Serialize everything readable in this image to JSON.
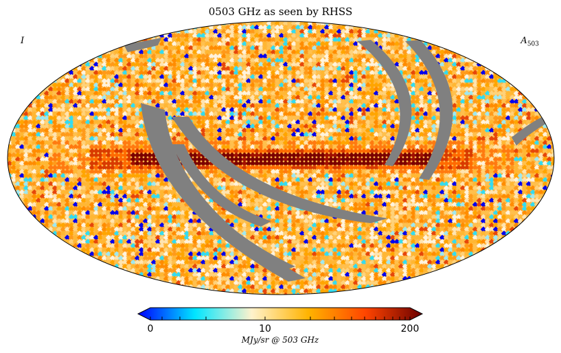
{
  "chart_data": {
    "type": "heatmap",
    "projection": "mollweide",
    "title": "0503 GHz as seen by RHSS",
    "stokes_label": "I",
    "map_label_base": "A",
    "map_label_sub": "503",
    "colorbar": {
      "min": 0,
      "mid": 10,
      "max": 200,
      "tick_labels": [
        "0",
        "10",
        "200"
      ],
      "unit": "MJy/sr @ 503 GHz",
      "extend": "both",
      "colors": [
        "#0000ff",
        "#00e5ff",
        "#fff2cc",
        "#ffb300",
        "#ff4500",
        "#6b0000"
      ]
    },
    "features": {
      "galactic_plane": "dark red band across center",
      "masked_regions": "grey unobserved scan stripes",
      "mask_color": "#808080"
    }
  }
}
